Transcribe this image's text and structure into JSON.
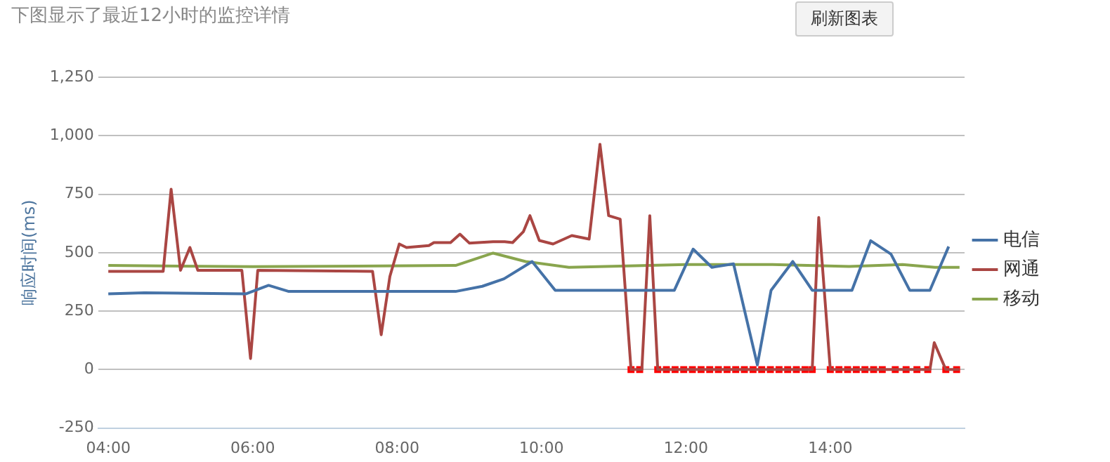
{
  "chart_data": {
    "type": "line",
    "title": "下图显示了最近12小时的监控详情",
    "ylabel": "响应时间(ms)",
    "annotations": [
      "刷新图表"
    ],
    "xlim": [
      3.86,
      15.86
    ],
    "xticks": [
      {
        "value": 4,
        "label": "04:00"
      },
      {
        "value": 6,
        "label": "06:00"
      },
      {
        "value": 8,
        "label": "08:00"
      },
      {
        "value": 10,
        "label": "10:00"
      },
      {
        "value": 12,
        "label": "12:00"
      },
      {
        "value": 14,
        "label": "14:00"
      }
    ],
    "ylim": [
      -250,
      1250
    ],
    "yticks": [
      -250,
      0,
      250,
      500,
      750,
      {
        "value": 1000,
        "label": "1,000"
      },
      {
        "value": 1250,
        "label": "1,250"
      }
    ],
    "grid": "y",
    "legend": "right",
    "marker": "none",
    "line_style": "solid",
    "series": [
      {
        "name": "电信",
        "color": "#4572a7",
        "x": [
          4,
          4.5,
          5.91,
          6.22,
          6.5,
          8.81,
          9.18,
          9.48,
          9.87,
          10.19,
          11.84,
          12.1,
          12.36,
          12.66,
          12.99,
          13.18,
          13.48,
          13.75,
          14.3,
          14.56,
          14.84,
          15.1,
          15.38,
          15.64
        ],
        "values": [
          324,
          328,
          324,
          360,
          334,
          334,
          356,
          388,
          462,
          339,
          339,
          515,
          437,
          452,
          20,
          339,
          462,
          339,
          339,
          551,
          494,
          339,
          339,
          526
        ]
      },
      {
        "name": "网通",
        "color": "#aa4643",
        "x": [
          4,
          4.76,
          4.87,
          5,
          5.13,
          5.24,
          5.85,
          5.97,
          6.07,
          7.66,
          7.78,
          7.9,
          8.03,
          8.13,
          8.44,
          8.51,
          8.74,
          8.87,
          9,
          9.33,
          9.49,
          9.6,
          9.75,
          9.84,
          9.97,
          10.16,
          10.42,
          10.66,
          10.81,
          10.93,
          11.09,
          11.24,
          11.39,
          11.5,
          11.61,
          13.75,
          13.84,
          14,
          15.38,
          15.44,
          15.6,
          15.79
        ],
        "values": [
          420,
          420,
          771,
          424,
          522,
          424,
          424,
          47,
          424,
          420,
          149,
          398,
          537,
          522,
          530,
          543,
          543,
          579,
          541,
          547,
          547,
          543,
          590,
          658,
          552,
          537,
          573,
          558,
          963,
          658,
          643,
          0,
          0,
          658,
          0,
          0,
          650,
          0,
          0,
          115,
          0,
          0
        ]
      },
      {
        "name": "移动",
        "color": "#89a54e",
        "x": [
          4,
          6,
          8.81,
          9.33,
          9.78,
          10.38,
          12,
          13.2,
          14.26,
          15,
          15.45,
          15.79
        ],
        "values": [
          445,
          440,
          445,
          498,
          462,
          437,
          449,
          449,
          441,
          449,
          437,
          437
        ]
      },
      {
        "type": "scatter",
        "color": "#ff0000",
        "marker": "square",
        "x": [
          11.24,
          11.36,
          11.61,
          11.73,
          11.85,
          11.97,
          12.09,
          12.21,
          12.33,
          12.45,
          12.57,
          12.69,
          12.81,
          12.93,
          13.05,
          13.17,
          13.29,
          13.41,
          13.53,
          13.65,
          13.75,
          14,
          14.12,
          14.24,
          14.36,
          14.48,
          14.6,
          14.72,
          14.9,
          15.05,
          15.2,
          15.35,
          15.6,
          15.75
        ],
        "values": [
          0,
          0,
          0,
          0,
          0,
          0,
          0,
          0,
          0,
          0,
          0,
          0,
          0,
          0,
          0,
          0,
          0,
          0,
          0,
          0,
          0,
          0,
          0,
          0,
          0,
          0,
          0,
          0,
          0,
          0,
          0,
          0,
          0,
          0
        ]
      }
    ]
  }
}
